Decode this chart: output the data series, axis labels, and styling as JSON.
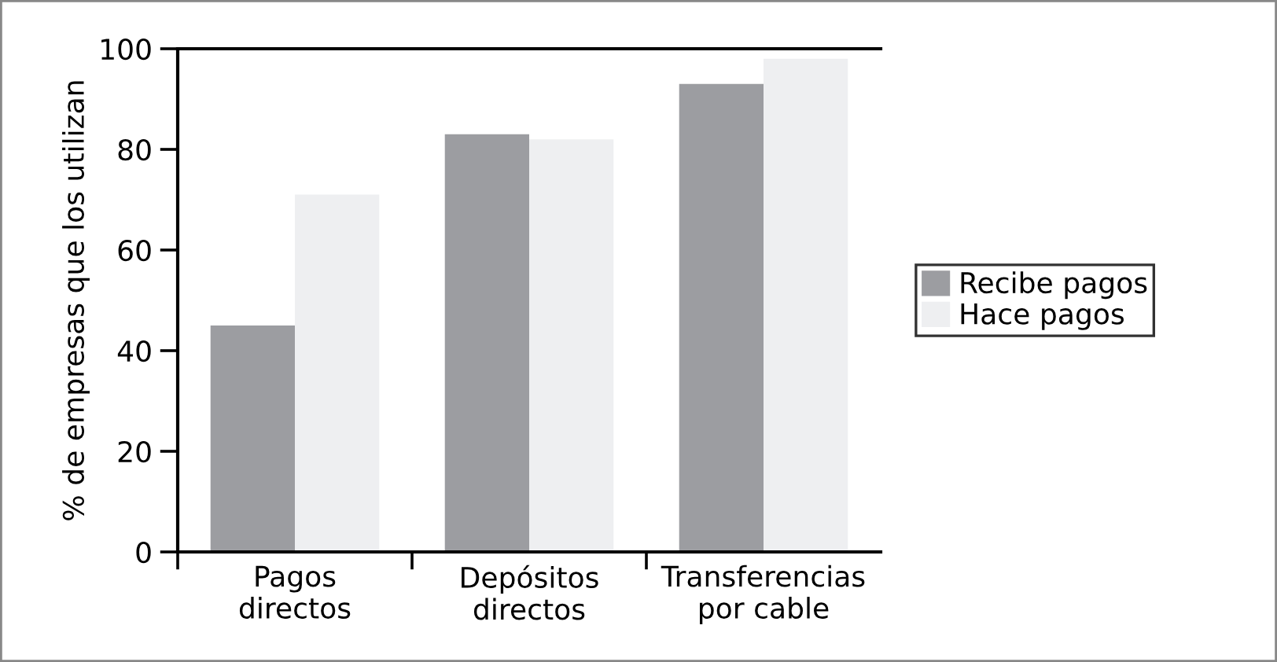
{
  "chart_data": {
    "type": "bar",
    "ylabel": "% de empresas que los utilizan",
    "categories": [
      "Pagos\ndirectos",
      "Depósitos\ndirectos",
      "Transferencias\npor cable"
    ],
    "series": [
      {
        "name": "Recibe pagos",
        "color": "#9c9da1",
        "values": [
          45,
          83,
          93
        ]
      },
      {
        "name": "Hace pagos",
        "color": "#eeeff1",
        "values": [
          71,
          82,
          98
        ]
      }
    ],
    "ylim": [
      0,
      100
    ],
    "yticks": [
      0,
      20,
      40,
      60,
      80,
      100
    ],
    "grid": false,
    "legend": "right"
  }
}
